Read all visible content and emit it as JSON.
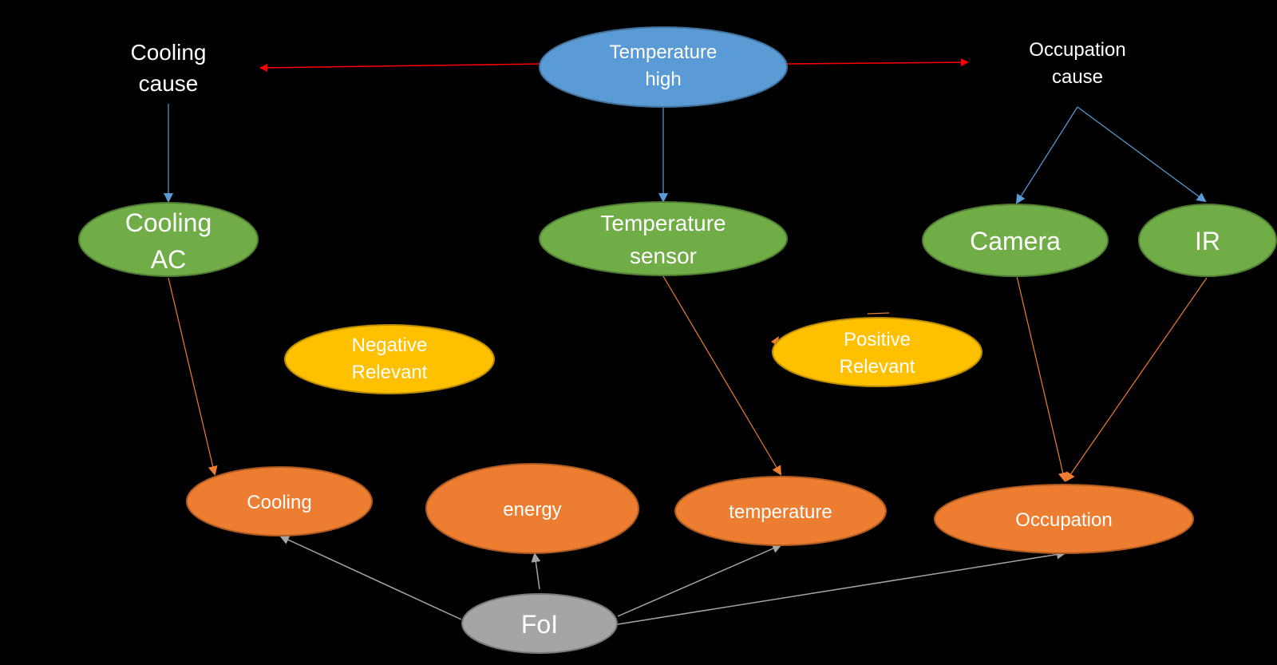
{
  "colors": {
    "background": "#000000",
    "blue_fill": "#5b9bd5",
    "blue_stroke": "#41719c",
    "green_fill": "#70ad47",
    "green_stroke": "#507e32",
    "yellow_fill": "#ffc000",
    "yellow_stroke": "#bc8c00",
    "orange_fill": "#ed7d31",
    "orange_stroke": "#ae5a21",
    "gray_fill": "#a5a5a5",
    "gray_stroke": "#787878",
    "red_arrow": "#ff0000",
    "blue_arrow": "#5b9bd5",
    "orange_arrow": "#ed7d31",
    "gray_arrow": "#a5a5a5",
    "text": "#ffffff"
  },
  "labels": {
    "cooling_cause": [
      "Cooling",
      "cause"
    ],
    "occupation_cause": [
      "Occupation",
      "cause"
    ]
  },
  "nodes": {
    "temperature_high": [
      "Temperature",
      "high"
    ],
    "cooling_ac": [
      "Cooling",
      "AC"
    ],
    "temperature_sensor": [
      "Temperature",
      "sensor"
    ],
    "camera": [
      "Camera"
    ],
    "ir": [
      "IR"
    ],
    "negative_relevant": [
      "Negative",
      "Relevant"
    ],
    "positive_relevant": [
      "Positive",
      "Relevant"
    ],
    "cooling": [
      "Cooling"
    ],
    "energy": [
      "energy"
    ],
    "temperature": [
      "temperature"
    ],
    "occupation": [
      "Occupation"
    ],
    "foi": [
      "FoI"
    ]
  }
}
